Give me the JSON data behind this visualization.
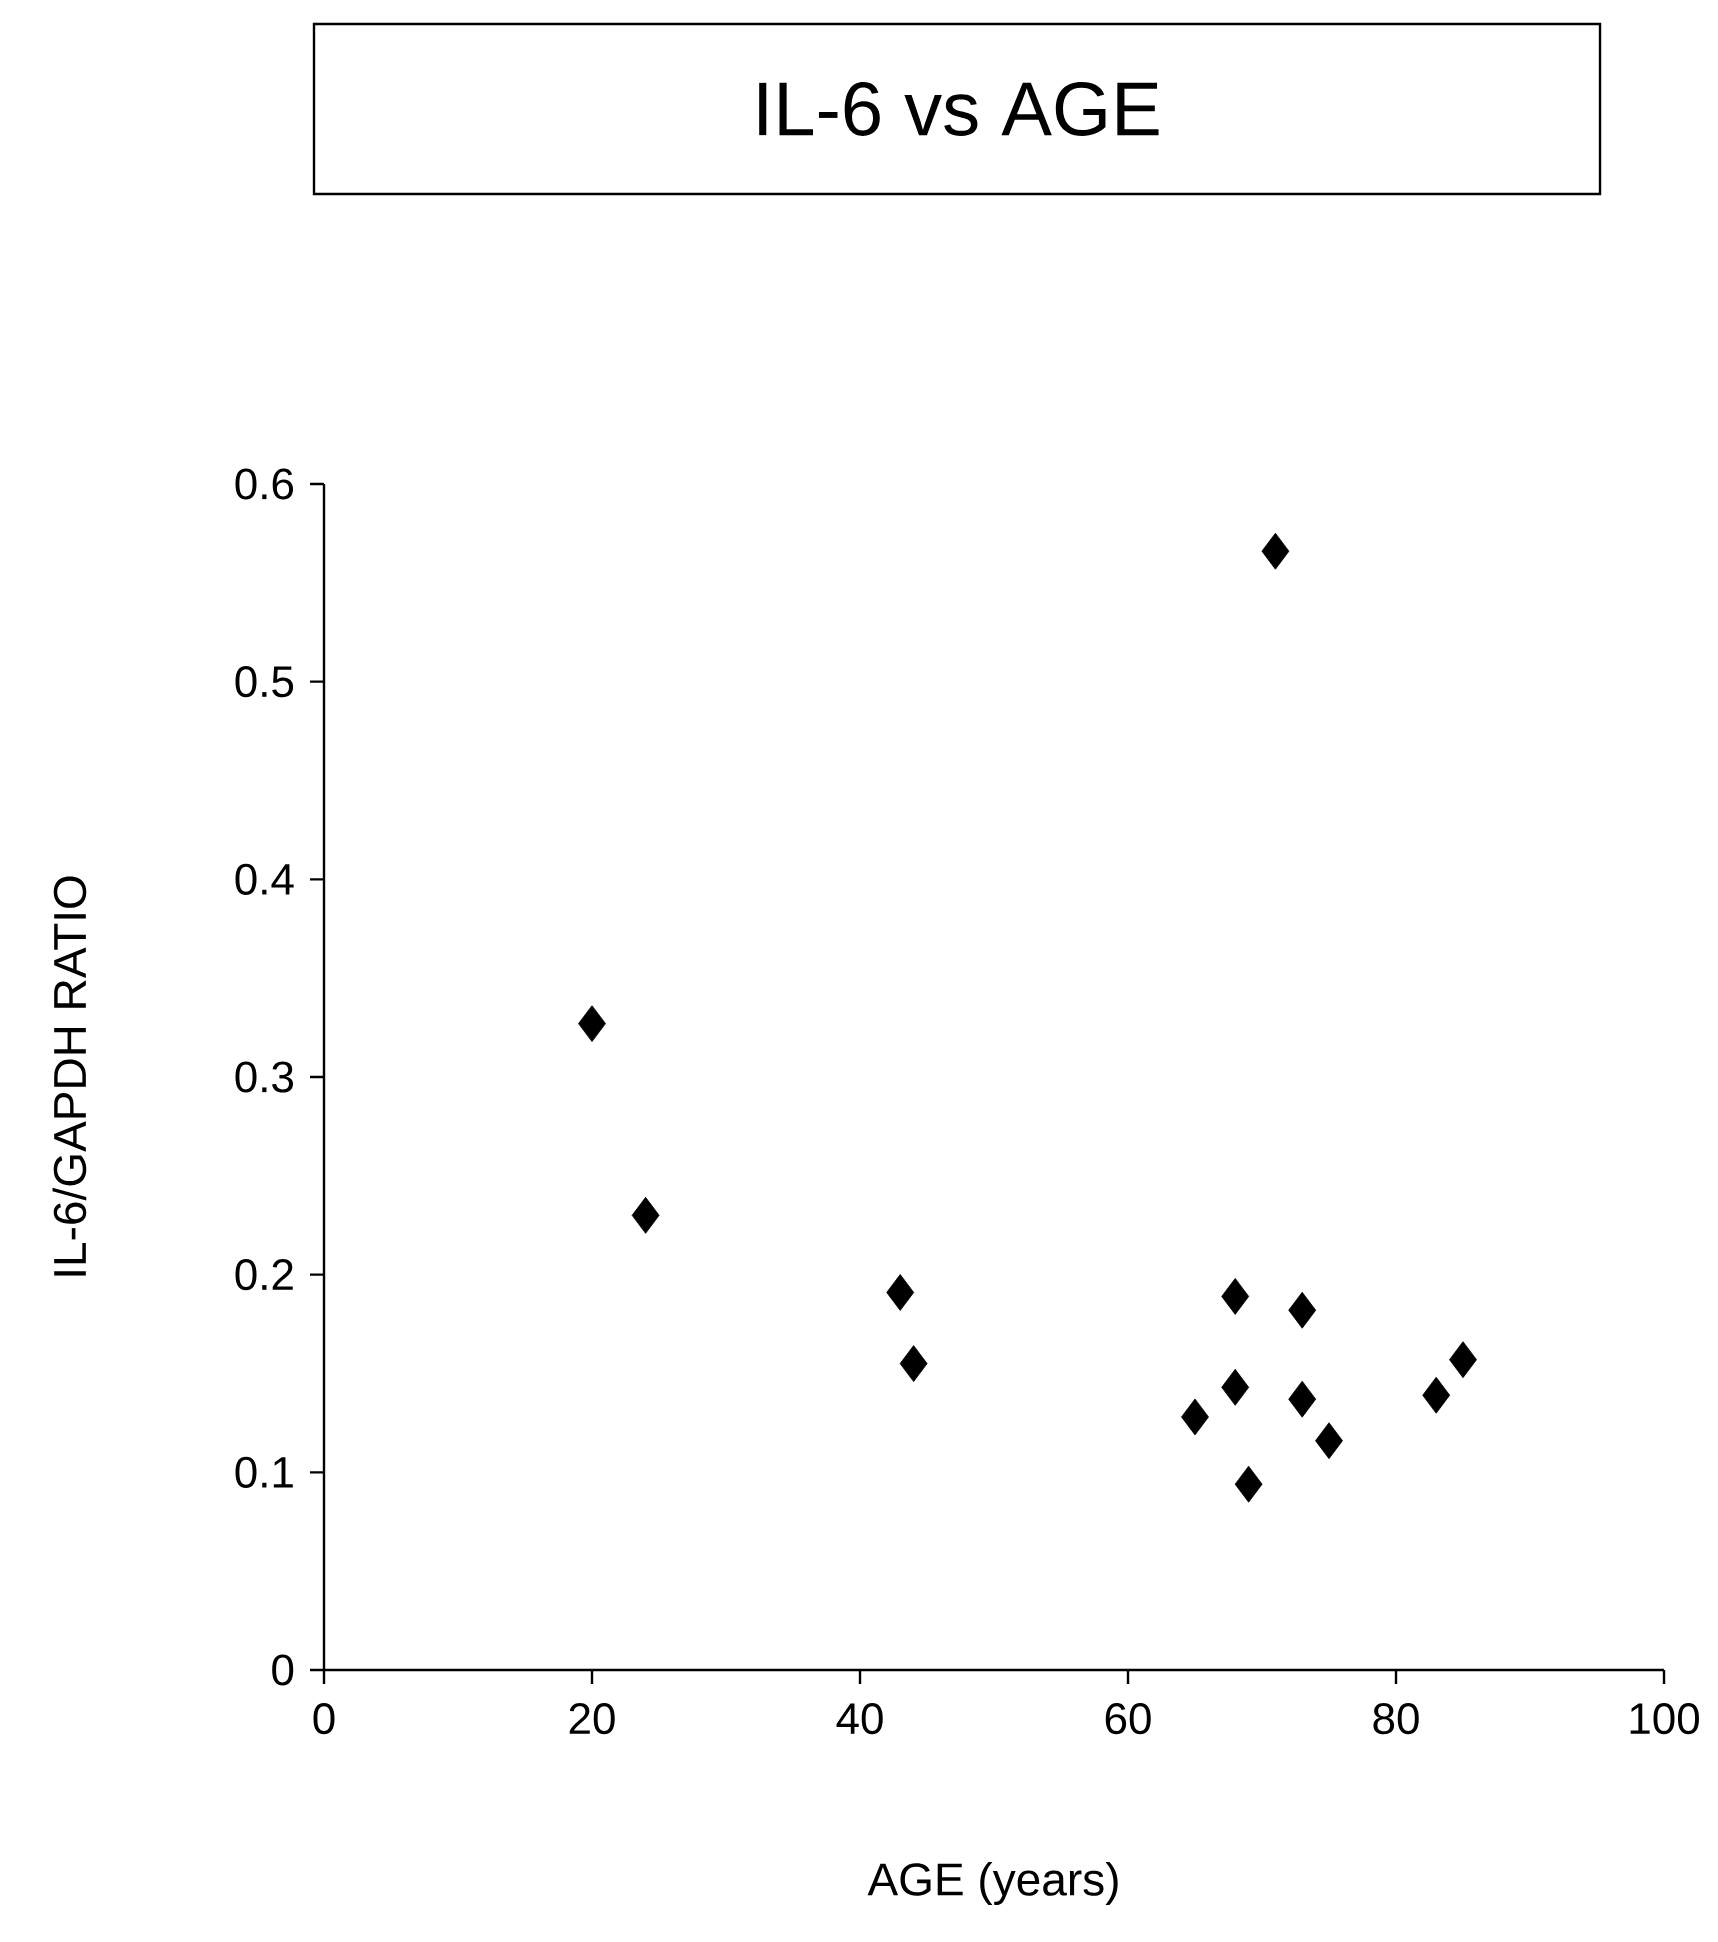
{
  "chart_data": {
    "type": "scatter",
    "title": "IL-6 vs AGE",
    "xlabel": "AGE (years)",
    "ylabel": "IL-6/GAPDH RATIO",
    "x": [
      20,
      24,
      43,
      44,
      71,
      65,
      68,
      68,
      69,
      73,
      73,
      75,
      83,
      85
    ],
    "values": [
      0.327,
      0.23,
      0.191,
      0.155,
      0.566,
      0.128,
      0.143,
      0.189,
      0.094,
      0.137,
      0.182,
      0.116,
      0.139,
      0.157
    ],
    "color": "#000000",
    "marker": "diamond",
    "grid": false,
    "xlim": [
      0,
      100
    ],
    "xticks": [
      0,
      20,
      40,
      60,
      80,
      100
    ],
    "ylim": [
      0,
      0.6
    ],
    "yticks": [
      {
        "value": 0,
        "label": "0"
      },
      0.1,
      0.2,
      0.3,
      0.4,
      0.5,
      0.6
    ]
  }
}
